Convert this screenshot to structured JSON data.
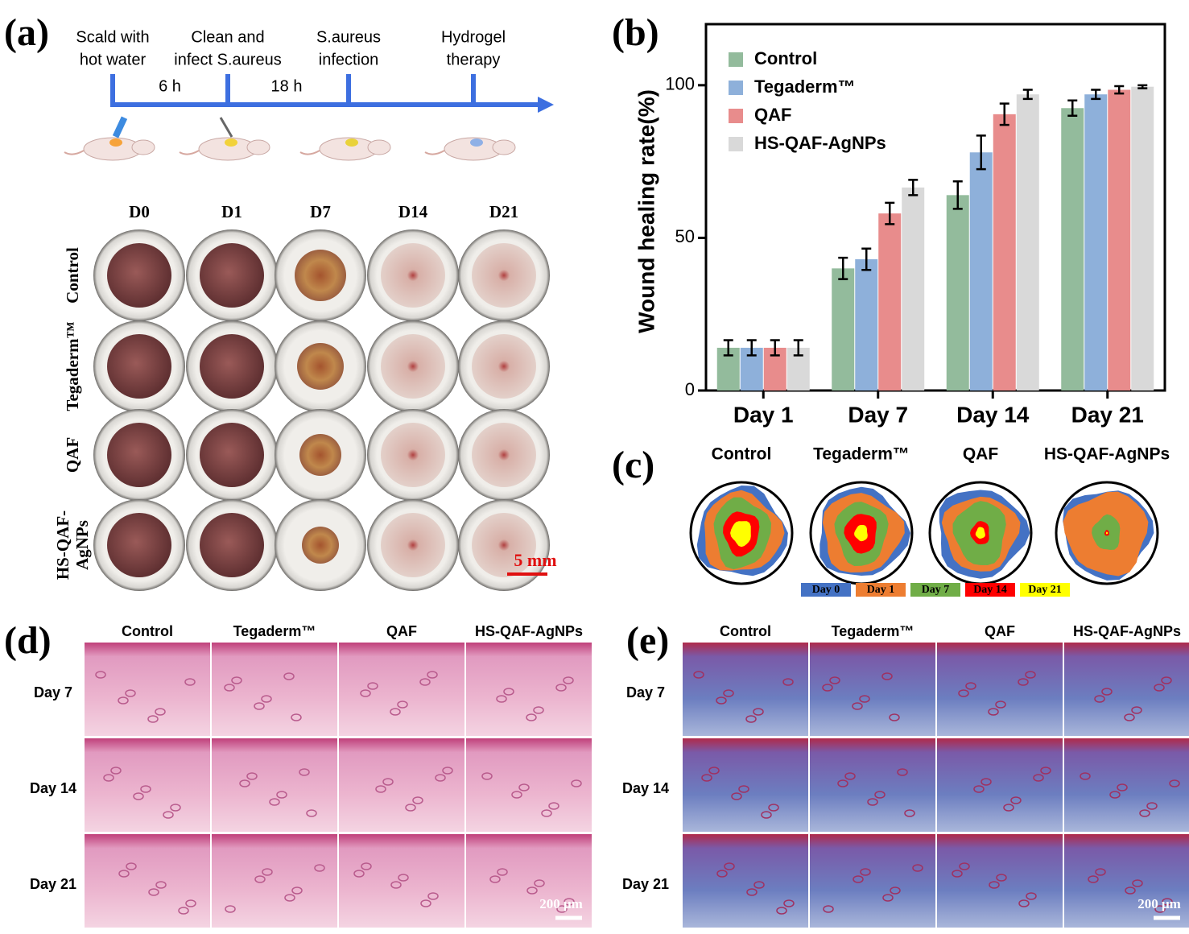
{
  "figure": {
    "panel_labels": [
      "(a)",
      "(b)",
      "(c)",
      "(d)",
      "(e)"
    ],
    "a": {
      "steps": [
        [
          "Scald with",
          "hot water"
        ],
        [
          "Clean and",
          "infect S.aureus"
        ],
        [
          "S.aureus",
          "infection"
        ],
        [
          "Hydrogel",
          "therapy"
        ]
      ],
      "intervals": [
        "6 h",
        "18 h"
      ],
      "days": [
        "D0",
        "D1",
        "D7",
        "D14",
        "D21"
      ],
      "groups": [
        [
          "Control"
        ],
        [
          "Tegaderm™"
        ],
        [
          "QAF"
        ],
        [
          "HS-QAF-",
          "AgNPs"
        ]
      ],
      "scale_bar": "5 mm"
    },
    "c": {
      "groups": [
        "Control",
        "Tegaderm™",
        "QAF",
        "HS-QAF-AgNPs"
      ],
      "legend": [
        "Day 0",
        "Day 1",
        "Day 7",
        "Day 14",
        "Day 21"
      ]
    },
    "d": {
      "columns": [
        "Control",
        "Tegaderm™",
        "QAF",
        "HS-QAF-AgNPs"
      ],
      "rows": [
        "Day 7",
        "Day 14",
        "Day 21"
      ],
      "scale_bar": "200 μm"
    },
    "e": {
      "columns": [
        "Control",
        "Tegaderm™",
        "QAF",
        "HS-QAF-AgNPs"
      ],
      "rows": [
        "Day 7",
        "Day 14",
        "Day 21"
      ],
      "scale_bar": "200 μm"
    }
  },
  "chart_data": {
    "type": "bar",
    "ylabel": "Wound healing rate(%)",
    "categories": [
      "Day 1",
      "Day 7",
      "Day 14",
      "Day 21"
    ],
    "series": [
      {
        "name": "Control",
        "color": "#93bb9c",
        "values": [
          14,
          40,
          64,
          92.5
        ],
        "errors": [
          2.5,
          3.5,
          4.5,
          2.5
        ]
      },
      {
        "name": "Tegaderm™",
        "color": "#8eb0da",
        "values": [
          14,
          43,
          78,
          97
        ],
        "errors": [
          2.5,
          3.5,
          5.5,
          1.5
        ]
      },
      {
        "name": "QAF",
        "color": "#e88c8c",
        "values": [
          14,
          58,
          90.5,
          98.5
        ],
        "errors": [
          2.5,
          3.5,
          3.5,
          1.2
        ]
      },
      {
        "name": "HS-QAF-AgNPs",
        "color": "#d9d9d9",
        "values": [
          14,
          66.5,
          97,
          99.5
        ],
        "errors": [
          2.5,
          2.5,
          1.5,
          0.5
        ]
      }
    ],
    "ylim": [
      0,
      120
    ],
    "yticks": [
      0,
      50,
      100
    ],
    "legend": "upper left"
  }
}
